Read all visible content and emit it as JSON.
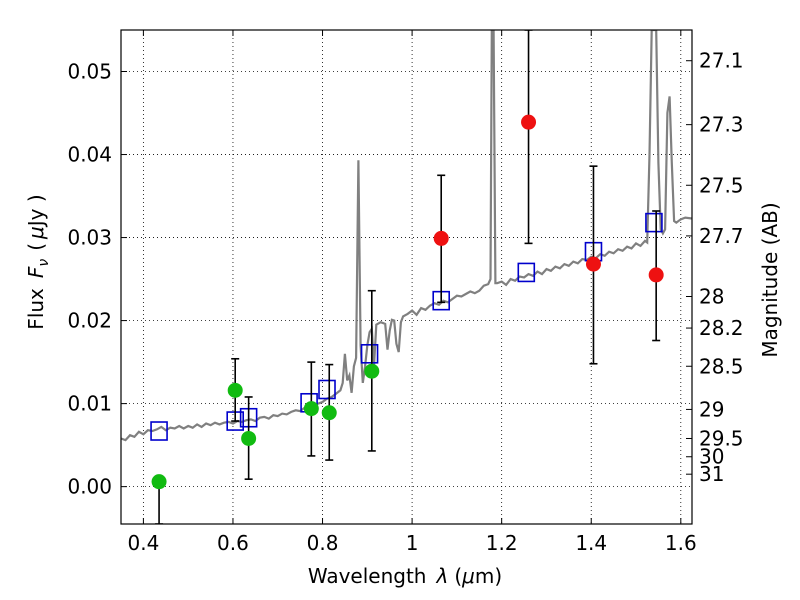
{
  "chart_data": {
    "type": "scatter",
    "xlabel_pre": "Wavelength",
    "xlabel_var": "λ",
    "xlabel_unit_pre": "(",
    "xlabel_unit_mu": "μ",
    "xlabel_unit_post": "m)",
    "ylabel_pre": "Flux",
    "ylabel_var": "F",
    "ylabel_sub": "ν",
    "ylabel_unit_pre": "(",
    "ylabel_unit_mu": "μ",
    "ylabel_unit_post": "Jy )",
    "y2label": "Magnitude (AB)",
    "xlim": [
      0.35,
      1.625
    ],
    "ylim": [
      -0.0045,
      0.055
    ],
    "grid": true,
    "x_ticks": [
      0.4,
      0.6,
      0.8,
      1.0,
      1.2,
      1.4,
      1.6
    ],
    "x_tick_labels": [
      "0.4",
      "0.6",
      "0.8",
      "1",
      "1.2",
      "1.4",
      "1.6"
    ],
    "y_ticks": [
      0.0,
      0.01,
      0.02,
      0.03,
      0.04,
      0.05
    ],
    "y_tick_labels": [
      "0.00",
      "0.01",
      "0.02",
      "0.03",
      "0.04",
      "0.05"
    ],
    "y2_ticks": [
      {
        "label": "27.1",
        "flux": 0.0513
      },
      {
        "label": "27.3",
        "flux": 0.0436
      },
      {
        "label": "27.5",
        "flux": 0.0363
      },
      {
        "label": "27.7",
        "flux": 0.0302
      },
      {
        "label": "28",
        "flux": 0.0229
      },
      {
        "label": "28.2",
        "flux": 0.0191
      },
      {
        "label": "28.5",
        "flux": 0.0145
      },
      {
        "label": "29",
        "flux": 0.0093
      },
      {
        "label": "29.5",
        "flux": 0.0058
      },
      {
        "label": "30",
        "flux": 0.0036
      },
      {
        "label": "31",
        "flux": 0.0015
      }
    ],
    "series": [
      {
        "kind": "line",
        "color": "#808080",
        "points": [
          [
            0.35,
            0.0058
          ],
          [
            0.36,
            0.0056
          ],
          [
            0.37,
            0.0062
          ],
          [
            0.38,
            0.006
          ],
          [
            0.39,
            0.0066
          ],
          [
            0.4,
            0.0063
          ],
          [
            0.41,
            0.0068
          ],
          [
            0.42,
            0.0067
          ],
          [
            0.43,
            0.0069
          ],
          [
            0.44,
            0.0072
          ],
          [
            0.45,
            0.0068
          ],
          [
            0.46,
            0.0071
          ],
          [
            0.47,
            0.007
          ],
          [
            0.48,
            0.0073
          ],
          [
            0.49,
            0.007
          ],
          [
            0.5,
            0.0073
          ],
          [
            0.51,
            0.0071
          ],
          [
            0.52,
            0.0075
          ],
          [
            0.53,
            0.0072
          ],
          [
            0.54,
            0.0076
          ],
          [
            0.55,
            0.0074
          ],
          [
            0.56,
            0.0077
          ],
          [
            0.57,
            0.0075
          ],
          [
            0.58,
            0.0077
          ],
          [
            0.59,
            0.0078
          ],
          [
            0.6,
            0.0076
          ],
          [
            0.61,
            0.0079
          ],
          [
            0.62,
            0.0078
          ],
          [
            0.63,
            0.008
          ],
          [
            0.64,
            0.0081
          ],
          [
            0.65,
            0.0079
          ],
          [
            0.66,
            0.0083
          ],
          [
            0.67,
            0.0084
          ],
          [
            0.68,
            0.0082
          ],
          [
            0.69,
            0.0086
          ],
          [
            0.7,
            0.0085
          ],
          [
            0.71,
            0.0088
          ],
          [
            0.72,
            0.0087
          ],
          [
            0.73,
            0.009
          ],
          [
            0.74,
            0.0092
          ],
          [
            0.75,
            0.0091
          ],
          [
            0.76,
            0.0095
          ],
          [
            0.77,
            0.0096
          ],
          [
            0.78,
            0.0098
          ],
          [
            0.79,
            0.01
          ],
          [
            0.8,
            0.0102
          ],
          [
            0.81,
            0.0106
          ],
          [
            0.82,
            0.0108
          ],
          [
            0.83,
            0.0112
          ],
          [
            0.84,
            0.0116
          ],
          [
            0.845,
            0.0125
          ],
          [
            0.85,
            0.016
          ],
          [
            0.855,
            0.0128
          ],
          [
            0.86,
            0.0134
          ],
          [
            0.865,
            0.0113
          ],
          [
            0.87,
            0.0145
          ],
          [
            0.875,
            0.0155
          ],
          [
            0.88,
            0.0393
          ],
          [
            0.885,
            0.017
          ],
          [
            0.89,
            0.0125
          ],
          [
            0.895,
            0.0145
          ],
          [
            0.9,
            0.017
          ],
          [
            0.905,
            0.0186
          ],
          [
            0.91,
            0.019
          ],
          [
            0.915,
            0.0145
          ],
          [
            0.92,
            0.0195
          ],
          [
            0.93,
            0.0198
          ],
          [
            0.94,
            0.0196
          ],
          [
            0.945,
            0.0165
          ],
          [
            0.95,
            0.0188
          ],
          [
            0.955,
            0.0201
          ],
          [
            0.96,
            0.02
          ],
          [
            0.965,
            0.0172
          ],
          [
            0.97,
            0.0162
          ],
          [
            0.975,
            0.0198
          ],
          [
            0.98,
            0.0205
          ],
          [
            0.99,
            0.0208
          ],
          [
            1.0,
            0.0212
          ],
          [
            1.01,
            0.0207
          ],
          [
            1.02,
            0.0215
          ],
          [
            1.03,
            0.0213
          ],
          [
            1.04,
            0.0218
          ],
          [
            1.05,
            0.0221
          ],
          [
            1.06,
            0.0219
          ],
          [
            1.07,
            0.0224
          ],
          [
            1.08,
            0.0222
          ],
          [
            1.09,
            0.0226
          ],
          [
            1.1,
            0.023
          ],
          [
            1.11,
            0.0229
          ],
          [
            1.12,
            0.0232
          ],
          [
            1.13,
            0.0235
          ],
          [
            1.14,
            0.0233
          ],
          [
            1.15,
            0.0236
          ],
          [
            1.16,
            0.0242
          ],
          [
            1.17,
            0.0244
          ],
          [
            1.175,
            0.025
          ],
          [
            1.178,
            0.055
          ],
          [
            1.182,
            0.055
          ],
          [
            1.186,
            0.0245
          ],
          [
            1.19,
            0.0245
          ],
          [
            1.2,
            0.0247
          ],
          [
            1.21,
            0.0243
          ],
          [
            1.22,
            0.025
          ],
          [
            1.23,
            0.0248
          ],
          [
            1.24,
            0.0253
          ],
          [
            1.25,
            0.0252
          ],
          [
            1.26,
            0.0256
          ],
          [
            1.27,
            0.0254
          ],
          [
            1.28,
            0.0259
          ],
          [
            1.29,
            0.0256
          ],
          [
            1.3,
            0.0262
          ],
          [
            1.31,
            0.026
          ],
          [
            1.32,
            0.0265
          ],
          [
            1.33,
            0.0263
          ],
          [
            1.34,
            0.0268
          ],
          [
            1.35,
            0.0266
          ],
          [
            1.36,
            0.0271
          ],
          [
            1.37,
            0.0269
          ],
          [
            1.38,
            0.0274
          ],
          [
            1.39,
            0.0273
          ],
          [
            1.4,
            0.0277
          ],
          [
            1.41,
            0.0275
          ],
          [
            1.42,
            0.028
          ],
          [
            1.43,
            0.0278
          ],
          [
            1.44,
            0.0283
          ],
          [
            1.45,
            0.0281
          ],
          [
            1.46,
            0.0286
          ],
          [
            1.47,
            0.0284
          ],
          [
            1.48,
            0.0289
          ],
          [
            1.49,
            0.0287
          ],
          [
            1.5,
            0.0293
          ],
          [
            1.51,
            0.029
          ],
          [
            1.52,
            0.0296
          ],
          [
            1.525,
            0.0294
          ],
          [
            1.53,
            0.04
          ],
          [
            1.535,
            0.055
          ],
          [
            1.545,
            0.055
          ],
          [
            1.55,
            0.039
          ],
          [
            1.555,
            0.031
          ],
          [
            1.56,
            0.0305
          ],
          [
            1.565,
            0.031
          ],
          [
            1.57,
            0.045
          ],
          [
            1.575,
            0.047
          ],
          [
            1.58,
            0.039
          ],
          [
            1.585,
            0.032
          ],
          [
            1.59,
            0.0318
          ],
          [
            1.6,
            0.0322
          ],
          [
            1.61,
            0.0324
          ],
          [
            1.625,
            0.0323
          ]
        ]
      },
      {
        "kind": "model",
        "marker": "open-square",
        "color": "#0000cc",
        "points": [
          [
            0.435,
            0.0067
          ],
          [
            0.605,
            0.0079
          ],
          [
            0.635,
            0.0083
          ],
          [
            0.77,
            0.0101
          ],
          [
            0.81,
            0.0117
          ],
          [
            0.905,
            0.016
          ],
          [
            1.065,
            0.0224
          ],
          [
            1.255,
            0.0258
          ],
          [
            1.405,
            0.0283
          ],
          [
            1.54,
            0.0318
          ]
        ]
      },
      {
        "kind": "measured",
        "marker": "filled-circle",
        "color": "#11bb11",
        "points": [
          [
            0.435,
            0.0006,
            -0.0045,
            0.0006
          ],
          [
            0.605,
            0.0116,
            0.0079,
            0.0154
          ],
          [
            0.635,
            0.0058,
            0.0009,
            0.0108
          ],
          [
            0.775,
            0.0094,
            0.0037,
            0.015
          ],
          [
            0.815,
            0.0089,
            0.0032,
            0.0147
          ],
          [
            0.91,
            0.0139,
            0.0043,
            0.0236
          ]
        ]
      },
      {
        "kind": "measured",
        "marker": "filled-circle",
        "color": "#ee1111",
        "points": [
          [
            1.065,
            0.0299,
            0.0222,
            0.0375
          ],
          [
            1.26,
            0.0439,
            0.0293,
            0.055
          ],
          [
            1.405,
            0.0268,
            0.0148,
            0.0386
          ],
          [
            1.545,
            0.0255,
            0.0176,
            0.0332
          ]
        ]
      }
    ]
  }
}
